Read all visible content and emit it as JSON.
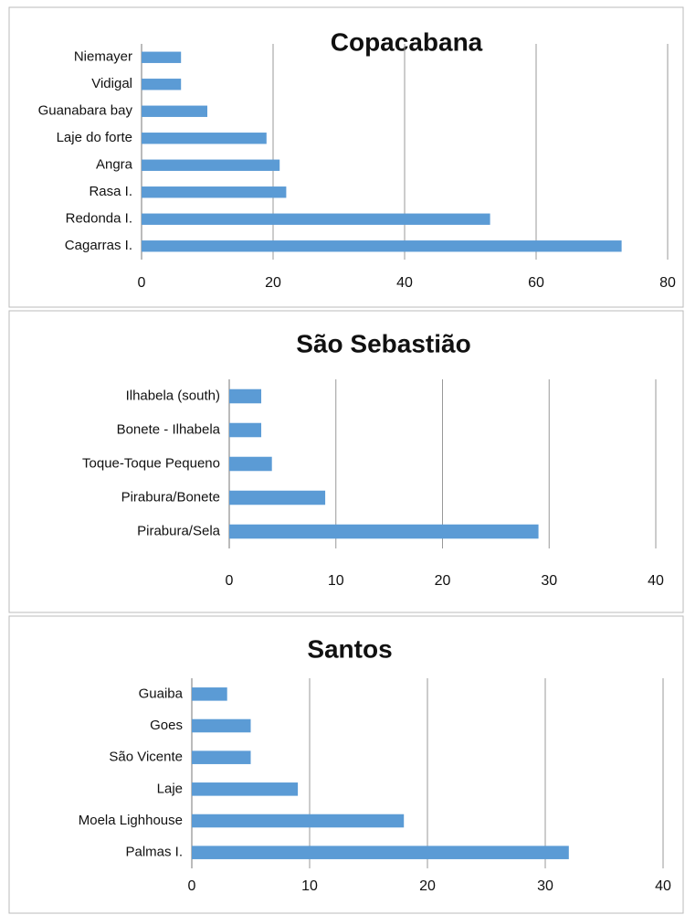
{
  "chart_data": [
    {
      "type": "bar",
      "orientation": "horizontal",
      "title": "Copacabana",
      "categories": [
        "Niemayer",
        "Vidigal",
        "Guanabara bay",
        "Laje do forte",
        "Angra",
        "Rasa I.",
        "Redonda I.",
        "Cagarras I."
      ],
      "values": [
        6,
        6,
        10,
        19,
        21,
        22,
        53,
        73
      ],
      "color": "#5b9bd5",
      "xlim": [
        0,
        80
      ],
      "xticks": [
        0,
        20,
        40,
        60,
        80
      ],
      "grid": true
    },
    {
      "type": "bar",
      "orientation": "horizontal",
      "title": "São Sebastião",
      "categories": [
        "Ilhabela (south)",
        "Bonete - Ilhabela",
        "Toque-Toque Pequeno",
        "Pirabura/Bonete",
        "Pirabura/Sela"
      ],
      "values": [
        3,
        3,
        4,
        9,
        29
      ],
      "color": "#5b9bd5",
      "xlim": [
        0,
        40
      ],
      "xticks": [
        0,
        10,
        20,
        30,
        40
      ],
      "grid": true
    },
    {
      "type": "bar",
      "orientation": "horizontal",
      "title": "Santos",
      "categories": [
        "Guaiba",
        "Goes",
        "São Vicente",
        "Laje",
        "Moela Lighhouse",
        "Palmas I."
      ],
      "values": [
        3,
        5,
        5,
        9,
        18,
        32
      ],
      "color": "#5b9bd5",
      "xlim": [
        0,
        40
      ],
      "xticks": [
        0,
        10,
        20,
        30,
        40
      ],
      "grid": true
    }
  ]
}
